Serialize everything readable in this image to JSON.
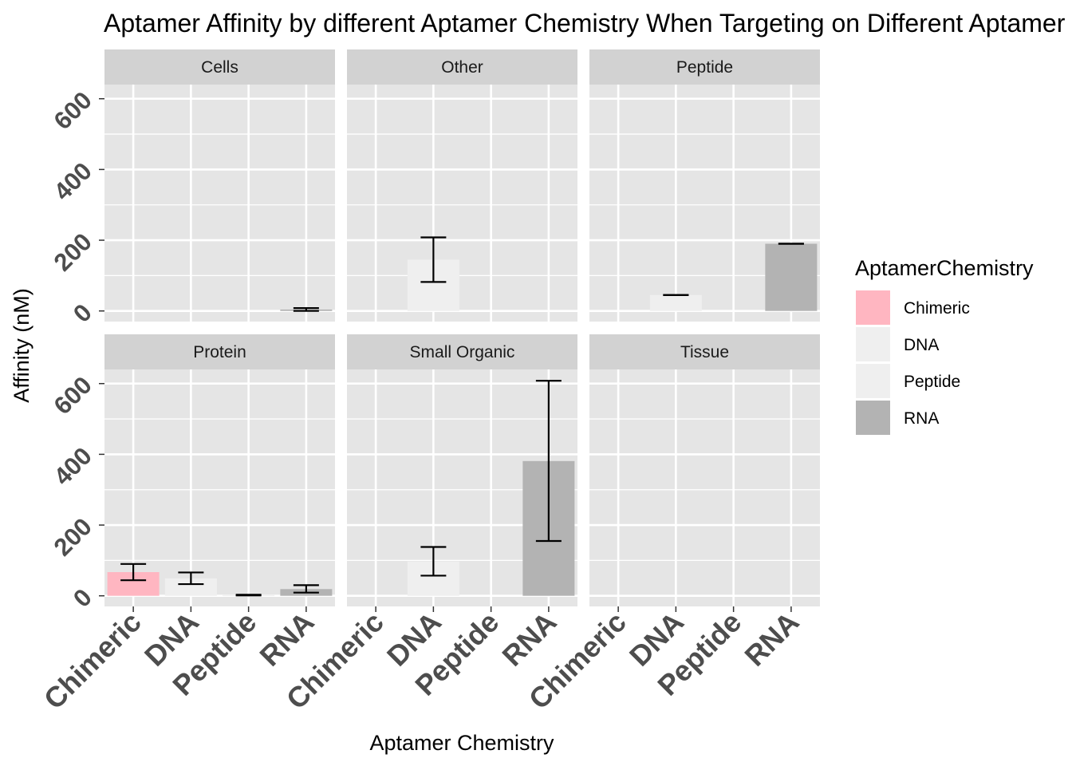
{
  "chart_data": {
    "type": "bar",
    "title": "Aptamer Affinity by different Aptamer Chemistry When Targeting on Different Aptamer Targets",
    "xlabel": "Aptamer Chemistry",
    "ylabel": "Affinity (nM)",
    "categories": [
      "Chimeric",
      "DNA",
      "Peptide",
      "RNA"
    ],
    "ylim": [
      -30,
      640
    ],
    "yticks": [
      0,
      200,
      400,
      600
    ],
    "facets": [
      {
        "name": "Cells",
        "bars": [
          {
            "category": "Chimeric",
            "value": null,
            "error": null
          },
          {
            "category": "DNA",
            "value": null,
            "error": null
          },
          {
            "category": "Peptide",
            "value": null,
            "error": null
          },
          {
            "category": "RNA",
            "value": 4,
            "error": [
              0,
              8
            ]
          }
        ]
      },
      {
        "name": "Other",
        "bars": [
          {
            "category": "Chimeric",
            "value": null,
            "error": null
          },
          {
            "category": "DNA",
            "value": 145,
            "error": [
              82,
              208
            ]
          },
          {
            "category": "Peptide",
            "value": null,
            "error": null
          },
          {
            "category": "RNA",
            "value": null,
            "error": null
          }
        ]
      },
      {
        "name": "Peptide",
        "bars": [
          {
            "category": "Chimeric",
            "value": null,
            "error": null
          },
          {
            "category": "DNA",
            "value": 45,
            "error": [
              45,
              45
            ]
          },
          {
            "category": "Peptide",
            "value": null,
            "error": null
          },
          {
            "category": "RNA",
            "value": 190,
            "error": [
              190,
              190
            ]
          }
        ]
      },
      {
        "name": "Protein",
        "bars": [
          {
            "category": "Chimeric",
            "value": 67,
            "error": [
              44,
              90
            ]
          },
          {
            "category": "DNA",
            "value": 49,
            "error": [
              33,
              66
            ]
          },
          {
            "category": "Peptide",
            "value": 2,
            "error": [
              1,
              3
            ]
          },
          {
            "category": "RNA",
            "value": 19,
            "error": [
              9,
              30
            ]
          }
        ]
      },
      {
        "name": "Small Organic",
        "bars": [
          {
            "category": "Chimeric",
            "value": null,
            "error": null
          },
          {
            "category": "DNA",
            "value": 97,
            "error": [
              57,
              138
            ]
          },
          {
            "category": "Peptide",
            "value": null,
            "error": null
          },
          {
            "category": "RNA",
            "value": 381,
            "error": [
              155,
              608
            ]
          }
        ]
      },
      {
        "name": "Tissue",
        "bars": [
          {
            "category": "Chimeric",
            "value": null,
            "error": null
          },
          {
            "category": "DNA",
            "value": null,
            "error": null
          },
          {
            "category": "Peptide",
            "value": null,
            "error": null
          },
          {
            "category": "RNA",
            "value": null,
            "error": null
          }
        ]
      }
    ],
    "legend": {
      "title": "AptamerChemistry",
      "placement": "right",
      "items": [
        {
          "label": "Chimeric",
          "color": "#FFB6C1"
        },
        {
          "label": "DNA",
          "color": "#EFEFEF"
        },
        {
          "label": "Peptide",
          "color": "#EFEFEF"
        },
        {
          "label": "RNA",
          "color": "#B3B3B3"
        }
      ]
    },
    "grid": true,
    "panel_background": "#E5E5E5",
    "strip_background": "#D2D2D2"
  }
}
